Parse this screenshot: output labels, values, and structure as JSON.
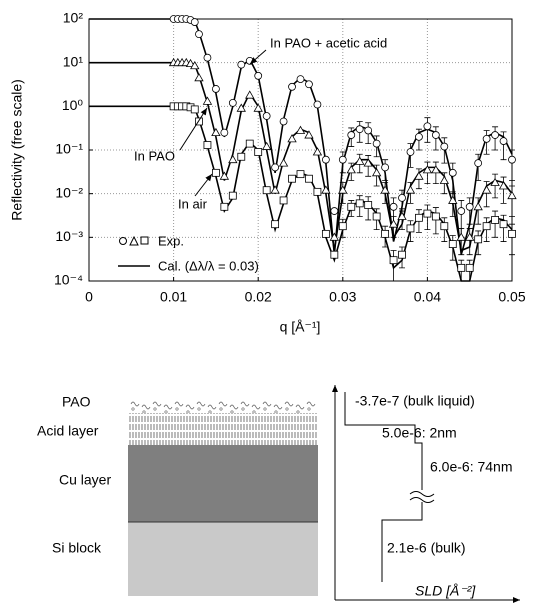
{
  "chart_data": {
    "type": "line",
    "y_label": "Reflectivity (free scale)",
    "x_label": "q [Å⁻¹]",
    "log_y": true,
    "grid": true,
    "xlim": [
      0,
      0.05
    ],
    "xticks": [
      0,
      0.01,
      0.02,
      0.03,
      0.04,
      0.05
    ],
    "ylim": [
      0.0001,
      100
    ],
    "yticks": [
      {
        "value": 0.0001,
        "label": "10⁻⁴"
      },
      {
        "value": 0.001,
        "label": "10⁻³"
      },
      {
        "value": 0.01,
        "label": "10⁻²"
      },
      {
        "value": 0.1,
        "label": "10⁻¹"
      },
      {
        "value": 1,
        "label": "10⁰"
      },
      {
        "value": 10,
        "label": "10¹"
      },
      {
        "value": 100,
        "label": "10²"
      }
    ],
    "color": "#000000",
    "legend": [
      "Exp.",
      "Cal. (Δλ/λ = 0.03)"
    ],
    "x_cal": [
      0,
      0.01,
      0.011,
      0.012,
      0.0125,
      0.013,
      0.014,
      0.015,
      0.016,
      0.017,
      0.018,
      0.019,
      0.02,
      0.021,
      0.022,
      0.023,
      0.024,
      0.025,
      0.026,
      0.027,
      0.028,
      0.029,
      0.03,
      0.031,
      0.032,
      0.033,
      0.034,
      0.035,
      0.036,
      0.037,
      0.038,
      0.039,
      0.04,
      0.041,
      0.042,
      0.043,
      0.044,
      0.045,
      0.046,
      0.047,
      0.048,
      0.049,
      0.05
    ],
    "x_exp": [
      0.01,
      0.0105,
      0.011,
      0.0115,
      0.012,
      0.0125,
      0.013,
      0.014,
      0.015,
      0.016,
      0.017,
      0.018,
      0.019,
      0.02,
      0.021,
      0.022,
      0.023,
      0.024,
      0.025,
      0.026,
      0.027,
      0.028,
      0.029,
      0.03,
      0.031,
      0.032,
      0.033,
      0.034,
      0.035,
      0.036,
      0.037,
      0.038,
      0.039,
      0.04,
      0.041,
      0.042,
      0.043,
      0.044,
      0.045,
      0.046,
      0.047,
      0.048,
      0.049,
      0.05
    ],
    "datasets": [
      {
        "label": "In PAO + acetic acid",
        "marker": "circle",
        "calc": [
          100,
          100,
          100,
          98,
          90,
          50,
          12,
          2,
          0.2,
          1,
          8,
          12,
          5,
          0.5,
          0.03,
          0.5,
          3,
          4.5,
          3.5,
          1,
          0.05,
          0.0004,
          0.05,
          0.25,
          0.35,
          0.3,
          0.15,
          0.03,
          0.0008,
          0.005,
          0.1,
          0.25,
          0.3,
          0.25,
          0.12,
          0.02,
          0.0004,
          0.002,
          0.05,
          0.2,
          0.25,
          0.2,
          0.08
        ],
        "exp": [
          100,
          100,
          100,
          100,
          95,
          85,
          45,
          13,
          2.5,
          0.25,
          1.2,
          9,
          11,
          5,
          0.6,
          0.04,
          0.45,
          2.8,
          4.2,
          3.2,
          1.1,
          0.06,
          0.004,
          0.06,
          0.22,
          0.3,
          0.28,
          0.14,
          0.04,
          0.005,
          0.008,
          0.09,
          0.2,
          0.35,
          0.22,
          0.12,
          0.03,
          0.004,
          0.005,
          0.05,
          0.18,
          0.22,
          0.16,
          0.06
        ],
        "errors": [
          null,
          null,
          null,
          null,
          null,
          null,
          null,
          null,
          null,
          null,
          null,
          null,
          null,
          null,
          null,
          null,
          null,
          null,
          null,
          null,
          null,
          null,
          null,
          0.03,
          0.1,
          0.15,
          0.14,
          0.07,
          0.02,
          0.003,
          0.004,
          0.05,
          0.1,
          0.2,
          0.12,
          0.07,
          0.02,
          0.003,
          0.003,
          0.03,
          0.1,
          0.12,
          0.1,
          0.04
        ]
      },
      {
        "label": "In PAO",
        "marker": "triangle",
        "calc": [
          10,
          10,
          10,
          9.8,
          9,
          5,
          1.2,
          0.2,
          0.02,
          0.08,
          0.8,
          2,
          1,
          0.1,
          0.01,
          0.06,
          0.2,
          0.3,
          0.25,
          0.1,
          0.01,
          0.0005,
          0.01,
          0.04,
          0.06,
          0.06,
          0.035,
          0.01,
          0.001,
          0.002,
          0.015,
          0.03,
          0.04,
          0.04,
          0.025,
          0.006,
          0.0005,
          0.0006,
          0.006,
          0.015,
          0.02,
          0.018,
          0.01
        ],
        "exp": [
          10,
          10,
          10,
          10,
          9.5,
          8.5,
          4.5,
          1.3,
          0.25,
          0.025,
          0.06,
          0.9,
          1.8,
          0.9,
          0.12,
          0.012,
          0.05,
          0.18,
          0.28,
          0.22,
          0.09,
          0.012,
          0.001,
          0.012,
          0.035,
          0.055,
          0.05,
          0.03,
          0.012,
          0.002,
          0.003,
          0.012,
          0.025,
          0.035,
          0.035,
          0.02,
          0.007,
          0.001,
          0.001,
          0.005,
          0.012,
          0.018,
          0.015,
          0.009
        ],
        "errors": [
          null,
          null,
          null,
          null,
          null,
          null,
          null,
          null,
          null,
          null,
          null,
          null,
          null,
          null,
          null,
          null,
          null,
          null,
          null,
          null,
          null,
          null,
          null,
          0.006,
          0.015,
          0.025,
          0.025,
          0.015,
          0.006,
          0.001,
          0.0015,
          0.006,
          0.012,
          0.018,
          0.018,
          0.01,
          0.004,
          0.0006,
          0.0006,
          0.003,
          0.007,
          0.01,
          0.009,
          0.006
        ]
      },
      {
        "label": "In air",
        "marker": "square",
        "calc": [
          1,
          1,
          1,
          0.98,
          0.9,
          0.5,
          0.12,
          0.025,
          0.004,
          0.008,
          0.08,
          0.15,
          0.1,
          0.01,
          0.0015,
          0.006,
          0.02,
          0.03,
          0.025,
          0.01,
          0.001,
          0.0003,
          0.0015,
          0.005,
          0.007,
          0.006,
          0.0035,
          0.001,
          0.0002,
          0.0003,
          0.0015,
          0.003,
          0.004,
          0.0035,
          0.002,
          0.0006,
          0.0001,
          0.0001,
          0.0008,
          0.002,
          0.0028,
          0.0025,
          0.0015
        ],
        "exp": [
          1,
          1,
          1,
          1,
          0.95,
          0.85,
          0.45,
          0.13,
          0.03,
          0.005,
          0.009,
          0.07,
          0.14,
          0.09,
          0.012,
          0.002,
          0.007,
          0.022,
          0.028,
          0.022,
          0.011,
          0.0012,
          0.0004,
          0.0018,
          0.005,
          0.006,
          0.0055,
          0.003,
          0.0012,
          0.0003,
          0.0004,
          0.0016,
          0.0028,
          0.0035,
          0.003,
          0.0018,
          0.0007,
          0.0002,
          0.0002,
          0.0009,
          0.0018,
          0.0025,
          0.002,
          0.0012
        ],
        "errors": [
          null,
          null,
          null,
          null,
          null,
          null,
          null,
          null,
          null,
          null,
          null,
          null,
          null,
          null,
          null,
          null,
          null,
          null,
          null,
          null,
          null,
          null,
          null,
          0.0008,
          0.002,
          0.003,
          0.003,
          0.0015,
          0.0006,
          0.0002,
          0.0002,
          0.0008,
          0.0015,
          0.002,
          0.0018,
          0.001,
          0.0004,
          0.0001,
          0.0001,
          0.0005,
          0.001,
          0.0015,
          0.0012,
          0.0008
        ]
      }
    ]
  },
  "diagram": {
    "layers": [
      "PAO",
      "Acid layer",
      "Cu layer",
      "Si block"
    ],
    "sld_labels": [
      "-3.7e-7 (bulk liquid)",
      "5.0e-6: 2nm",
      "6.0e-6: 74nm",
      "2.1e-6 (bulk)"
    ],
    "axis_label": "SLD [Å⁻²]"
  }
}
